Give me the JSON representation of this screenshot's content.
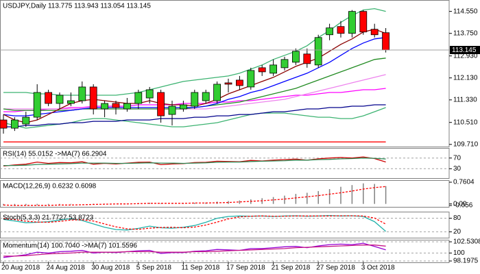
{
  "chart_data": [
    {
      "type": "candlestick",
      "title": "USDJPY,Daily  113.775 113.943 113.054 113.145",
      "categories": [
        "20 Aug 2018",
        null,
        null,
        null,
        "24 Aug 2018",
        null,
        null,
        null,
        "30 Aug 2018",
        null,
        null,
        null,
        "5 Sep 2018",
        null,
        null,
        null,
        "11 Sep 2018",
        null,
        null,
        null,
        "17 Sep 2018",
        null,
        null,
        null,
        "21 Sep 2018",
        null,
        null,
        null,
        "27 Sep 2018",
        null,
        null,
        null,
        "3 Oct 2018",
        null,
        null
      ],
      "open": [
        110.6,
        110.3,
        110.45,
        110.7,
        111.6,
        111.2,
        111.2,
        111.3,
        111.8,
        111.0,
        111.2,
        111.0,
        111.2,
        111.4,
        111.6,
        110.8,
        111.0,
        111.1,
        111.3,
        111.3,
        111.95,
        112.05,
        111.8,
        112.5,
        112.3,
        112.5,
        112.7,
        113.0,
        112.6,
        113.7,
        114.0,
        113.75,
        114.55,
        113.9,
        113.775
      ],
      "high": [
        110.8,
        110.7,
        110.9,
        111.9,
        111.7,
        111.6,
        111.6,
        112.0,
        111.9,
        111.3,
        111.3,
        111.4,
        111.7,
        111.8,
        111.7,
        111.3,
        111.3,
        111.7,
        111.7,
        112.0,
        112.1,
        112.2,
        112.5,
        112.6,
        112.8,
        112.9,
        113.2,
        113.2,
        113.7,
        114.1,
        114.2,
        114.6,
        114.6,
        114.1,
        113.943
      ],
      "low": [
        110.1,
        110.2,
        110.35,
        110.6,
        111.1,
        111.0,
        111.1,
        111.2,
        110.8,
        110.7,
        110.8,
        110.9,
        111.0,
        111.2,
        110.5,
        110.4,
        110.9,
        111.0,
        111.2,
        111.2,
        111.6,
        111.7,
        111.7,
        112.2,
        112.2,
        112.4,
        112.6,
        112.5,
        112.5,
        113.5,
        113.6,
        113.6,
        113.7,
        113.6,
        113.054
      ],
      "close": [
        110.3,
        110.6,
        110.7,
        111.6,
        111.2,
        111.5,
        111.3,
        111.8,
        111.0,
        111.2,
        111.05,
        111.2,
        111.6,
        111.7,
        110.75,
        111.1,
        111.15,
        111.6,
        111.6,
        111.9,
        111.9,
        111.85,
        112.4,
        112.35,
        112.6,
        112.8,
        113.1,
        112.65,
        113.6,
        113.95,
        113.75,
        114.55,
        113.8,
        113.7,
        113.145
      ],
      "up_color": "#32cd32",
      "down_color": "#ff0000",
      "current_price": 113.145,
      "series": [
        {
          "color": "#3cb371",
          "values": [
            111.6,
            111.6,
            111.6,
            111.55,
            111.55,
            111.5,
            111.5,
            111.5,
            111.5,
            111.5,
            111.5,
            111.55,
            111.6,
            111.7,
            111.8,
            111.9,
            112.0,
            112.05,
            112.1,
            112.15,
            112.2,
            112.3,
            112.45,
            112.6,
            112.8,
            112.95,
            113.1,
            113.3,
            113.6,
            113.85,
            114.15,
            114.4,
            114.6,
            114.65,
            114.55
          ]
        },
        {
          "color": "#3cb371",
          "values": [
            110.5,
            110.4,
            110.3,
            110.35,
            110.4,
            110.45,
            110.5,
            110.6,
            110.65,
            110.65,
            110.6,
            110.55,
            110.5,
            110.45,
            110.4,
            110.35,
            110.35,
            110.4,
            110.45,
            110.5,
            110.6,
            110.7,
            110.8,
            110.85,
            110.85,
            110.85,
            110.8,
            110.75,
            110.7,
            110.7,
            110.65,
            110.65,
            110.75,
            110.9,
            111.05
          ]
        },
        {
          "color": "#ff0000",
          "values": [
            109.8,
            109.8,
            109.8,
            109.8,
            109.8,
            109.8,
            109.8,
            109.8,
            109.8,
            109.8,
            109.8,
            109.8,
            109.8,
            109.8,
            109.8,
            109.8,
            109.8,
            109.8,
            109.8,
            109.8,
            109.8,
            109.8,
            109.8,
            109.8,
            109.8,
            109.8,
            109.8,
            109.8,
            109.8,
            109.8,
            109.8,
            109.8,
            109.8,
            109.8,
            109.8
          ]
        },
        {
          "color": "#00008b",
          "values": [
            110.35,
            110.35,
            110.4,
            110.4,
            110.45,
            110.45,
            110.5,
            110.5,
            110.55,
            110.55,
            110.55,
            110.6,
            110.6,
            110.6,
            110.65,
            110.65,
            110.65,
            110.7,
            110.7,
            110.75,
            110.75,
            110.8,
            110.8,
            110.85,
            110.9,
            110.9,
            110.95,
            111.0,
            111.0,
            111.05,
            111.05,
            111.1,
            111.1,
            111.15,
            111.15
          ]
        },
        {
          "color": "#ff00ff",
          "values": [
            110.9,
            110.9,
            110.95,
            110.95,
            111.0,
            111.0,
            111.05,
            111.05,
            111.1,
            111.1,
            111.1,
            111.1,
            111.15,
            111.15,
            111.15,
            111.15,
            111.2,
            111.2,
            111.2,
            111.25,
            111.25,
            111.3,
            111.3,
            111.35,
            111.4,
            111.45,
            111.5,
            111.5,
            111.55,
            111.6,
            111.6,
            111.65,
            111.7,
            111.7,
            111.75
          ]
        },
        {
          "color": "#ee82ee",
          "values": [
            111.0,
            111.0,
            111.0,
            111.0,
            111.0,
            111.0,
            111.0,
            111.0,
            111.0,
            111.0,
            111.0,
            111.0,
            111.0,
            111.0,
            111.0,
            111.0,
            111.0,
            111.0,
            111.0,
            111.05,
            111.1,
            111.15,
            111.2,
            111.25,
            111.3,
            111.35,
            111.45,
            111.55,
            111.65,
            111.75,
            111.85,
            111.95,
            112.05,
            112.15,
            112.25
          ]
        },
        {
          "color": "#228b22",
          "values": [
            111.0,
            110.95,
            110.95,
            110.95,
            110.95,
            110.95,
            110.95,
            111.0,
            111.0,
            111.0,
            111.0,
            111.0,
            111.0,
            111.0,
            111.0,
            111.0,
            111.0,
            111.05,
            111.1,
            111.15,
            111.2,
            111.25,
            111.35,
            111.45,
            111.55,
            111.65,
            111.75,
            111.9,
            112.05,
            112.2,
            112.35,
            112.5,
            112.65,
            112.8,
            112.85
          ]
        },
        {
          "color": "#0000ff",
          "values": [
            110.8,
            110.75,
            110.75,
            110.8,
            110.85,
            110.9,
            110.95,
            111.0,
            111.05,
            111.05,
            111.05,
            111.05,
            111.05,
            111.05,
            111.05,
            111.05,
            111.05,
            111.05,
            111.1,
            111.2,
            111.35,
            111.45,
            111.6,
            111.7,
            111.85,
            112.0,
            112.15,
            112.3,
            112.5,
            112.7,
            112.95,
            113.2,
            113.4,
            113.55,
            113.6
          ]
        },
        {
          "color": "#8b0000",
          "values": [
            110.8,
            110.6,
            110.5,
            110.6,
            110.8,
            111.0,
            111.2,
            111.3,
            111.35,
            111.3,
            111.25,
            111.2,
            111.2,
            111.3,
            111.2,
            111.15,
            111.15,
            111.1,
            111.2,
            111.35,
            111.55,
            111.7,
            111.85,
            112.0,
            112.15,
            112.35,
            112.55,
            112.7,
            112.85,
            113.1,
            113.35,
            113.55,
            113.8,
            113.9,
            113.75
          ]
        }
      ],
      "ylim": [
        109.68,
        114.89
      ],
      "yticks": [
        {
          "value": 114.55,
          "label": "114.550"
        },
        {
          "value": 113.75,
          "label": "113.750"
        },
        {
          "value": 112.93,
          "label": "112.930"
        },
        {
          "value": 112.13,
          "label": "112.130"
        },
        {
          "value": 111.33,
          "label": "111.330"
        },
        {
          "value": 110.51,
          "label": "110.510"
        },
        {
          "value": 109.71,
          "label": "109.710"
        }
      ]
    },
    {
      "type": "line",
      "title": "RSI(14) 55.0152 ->MA(7) 66.2904",
      "grid": true,
      "series": [
        {
          "color": "#cc0000",
          "values": [
            40,
            44,
            47,
            55,
            50,
            53,
            52,
            56,
            47,
            50,
            48,
            51,
            54,
            55,
            45,
            48,
            49,
            53,
            54,
            58,
            57,
            56,
            61,
            59,
            62,
            64,
            66,
            62,
            67,
            70,
            72,
            70,
            74,
            68,
            55.0152
          ]
        },
        {
          "color": "#2e8b57",
          "values": [
            42,
            42,
            43,
            46,
            47,
            48,
            49,
            51,
            51,
            51,
            50,
            50,
            51,
            52,
            51,
            51,
            50,
            51,
            52,
            54,
            55,
            55,
            57,
            58,
            59,
            60,
            62,
            62,
            64,
            65,
            67,
            68,
            70,
            69,
            66.2904
          ]
        }
      ],
      "ylim": [
        0,
        100
      ],
      "yticks": [
        70,
        30
      ]
    },
    {
      "type": "macd",
      "title": "MACD(12,26,9) 0.6232 0.6098",
      "series": [
        {
          "type": "bar",
          "color": "#808080",
          "values": [
            -0.05,
            -0.05,
            -0.05,
            -0.04,
            -0.03,
            -0.02,
            -0.02,
            0.0,
            0.01,
            0.01,
            0.0,
            0.01,
            0.03,
            0.04,
            0.02,
            0.02,
            0.02,
            0.04,
            0.05,
            0.08,
            0.1,
            0.12,
            0.16,
            0.2,
            0.24,
            0.29,
            0.35,
            0.39,
            0.45,
            0.52,
            0.6,
            0.66,
            0.72,
            0.7,
            0.6232
          ]
        },
        {
          "type": "line",
          "color": "#ff0000",
          "dash": true,
          "values": [
            -0.04,
            -0.05,
            -0.05,
            -0.05,
            -0.05,
            -0.04,
            -0.04,
            -0.03,
            -0.02,
            -0.01,
            0,
            0,
            0.01,
            0.02,
            0.02,
            0.02,
            0.02,
            0.03,
            0.03,
            0.04,
            0.05,
            0.07,
            0.09,
            0.11,
            0.14,
            0.17,
            0.21,
            0.25,
            0.29,
            0.34,
            0.39,
            0.45,
            0.52,
            0.57,
            0.6098
          ]
        }
      ],
      "ylim": [
        -0.056,
        0.7604
      ],
      "yticks": [
        0.7604,
        {
          "value": 0,
          "label": "0.00"
        },
        -0.056
      ]
    },
    {
      "type": "line",
      "title": "Stoch(5,3,3) 21.7727 53.8723",
      "grid": true,
      "series": [
        {
          "color": "#20b2aa",
          "values": [
            75,
            68,
            60,
            62,
            65,
            72,
            78,
            70,
            55,
            40,
            30,
            28,
            35,
            45,
            38,
            36,
            40,
            48,
            62,
            80,
            88,
            90,
            89,
            90,
            88,
            90,
            91,
            89,
            90,
            92,
            90,
            91,
            88,
            65,
            21.7727
          ]
        },
        {
          "color": "#ff0000",
          "dash": true,
          "values": [
            78,
            74,
            67,
            63,
            62,
            66,
            72,
            73,
            68,
            55,
            42,
            33,
            31,
            36,
            39,
            40,
            38,
            41,
            50,
            63,
            77,
            86,
            89,
            90,
            89,
            89,
            90,
            90,
            90,
            90,
            91,
            91,
            90,
            81,
            53.8723
          ]
        }
      ],
      "ylim": [
        0,
        100
      ],
      "yticks": [
        80,
        20
      ]
    },
    {
      "type": "line",
      "title": "Momentum(14) 100.7040 ->MA(7) 101.5596",
      "grid": true,
      "series": [
        {
          "color": "#9400d3",
          "values": [
            99.0,
            99.3,
            99.6,
            100.2,
            100.0,
            100.3,
            100.4,
            100.6,
            100.0,
            100.2,
            100.1,
            100.3,
            100.5,
            100.6,
            99.9,
            100.1,
            100.1,
            100.4,
            100.5,
            100.8,
            100.7,
            100.6,
            101.0,
            101.0,
            101.2,
            101.4,
            101.5,
            101.2,
            101.6,
            101.9,
            102.0,
            101.9,
            102.2,
            101.5,
            100.704
          ]
        },
        {
          "color": "#c71585",
          "values": [
            99.3,
            99.3,
            99.4,
            99.6,
            99.8,
            99.9,
            100.0,
            100.2,
            100.2,
            100.2,
            100.2,
            100.3,
            100.3,
            100.3,
            100.2,
            100.2,
            100.2,
            100.3,
            100.3,
            100.4,
            100.5,
            100.6,
            100.7,
            100.8,
            100.9,
            101.0,
            101.2,
            101.3,
            101.4,
            101.5,
            101.6,
            101.7,
            101.8,
            101.8,
            101.5596
          ]
        }
      ],
      "ylim": [
        98.1975,
        102.5308
      ],
      "yticks": [
        102.5308,
        100,
        98.1975
      ]
    }
  ]
}
